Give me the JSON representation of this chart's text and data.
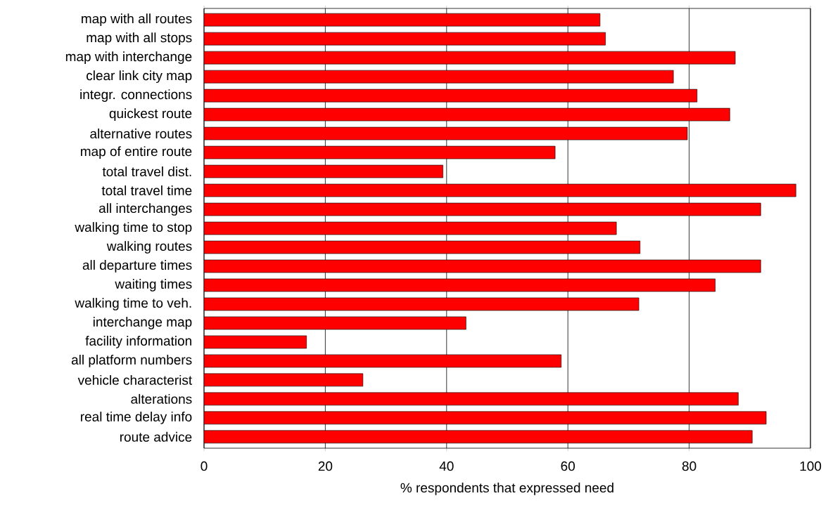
{
  "chart_data": {
    "type": "bar",
    "orientation": "horizontal",
    "xlabel": "% respondents that expressed need",
    "categories": [
      "map with all routes",
      "map with all stops",
      "map with interchange",
      "clear link city map",
      "integr. connections",
      "quickest route",
      "alternative routes",
      "map of entire route",
      "total travel dist.",
      "total travel time",
      "all interchanges",
      "walking time to stop",
      "walking routes",
      "all departure times",
      "waiting times",
      "walking time to veh.",
      "interchange map",
      "facility information",
      "all platform numbers",
      "vehicle characterist",
      "alterations",
      "real time delay info",
      "route advice"
    ],
    "values": [
      65.3,
      66.2,
      87.6,
      77.4,
      81.3,
      86.7,
      79.7,
      57.9,
      39.4,
      97.6,
      91.8,
      68.0,
      71.9,
      91.8,
      84.3,
      71.7,
      43.2,
      16.9,
      58.9,
      26.2,
      88.1,
      92.7,
      90.4
    ],
    "color": "#ff0000",
    "xlim": [
      0,
      100
    ],
    "xticks": [
      0,
      20,
      40,
      60,
      80,
      100
    ],
    "grid": "x"
  }
}
